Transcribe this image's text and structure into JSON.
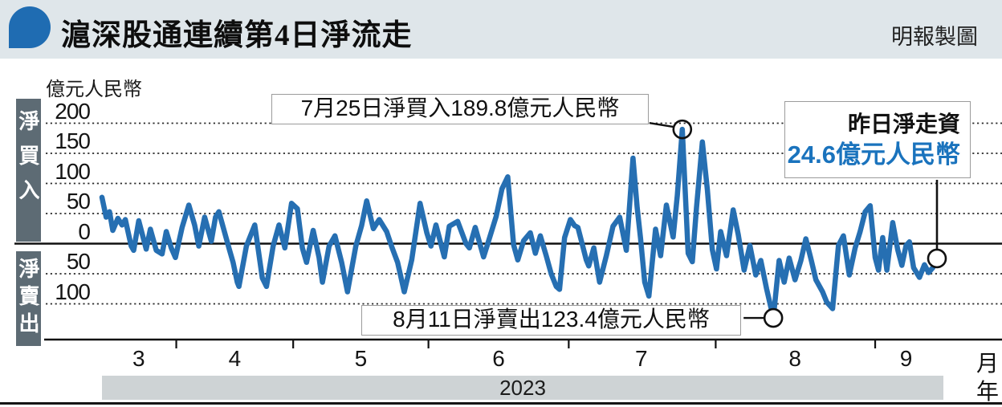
{
  "header": {
    "title": "滬深股通連續第4日淨流走",
    "credit": "明報製圖",
    "icon": "speech-bubble-icon",
    "bg_color": "#dfe6ea",
    "icon_color": "#1f6cb2"
  },
  "chart_data": {
    "type": "line",
    "unit_label": "億元人民幣",
    "line_color": "#266fb2",
    "grid_color": "#2a2a2a",
    "y_axis": {
      "positive_label": "淨買入",
      "negative_label": "淨賣出",
      "ticks": [
        {
          "value": 200,
          "label": "200"
        },
        {
          "value": 150,
          "label": "150"
        },
        {
          "value": 100,
          "label": "100"
        },
        {
          "value": 50,
          "label": "50"
        },
        {
          "value": 0,
          "label": "0"
        },
        {
          "value": -50,
          "label": "50"
        },
        {
          "value": -100,
          "label": "100"
        }
      ],
      "range": [
        -140,
        210
      ]
    },
    "x_axis": {
      "months": [
        {
          "label": "3",
          "t": 0.044
        },
        {
          "label": "4",
          "t": 0.159
        },
        {
          "label": "5",
          "t": 0.31
        },
        {
          "label": "6",
          "t": 0.475
        },
        {
          "label": "7",
          "t": 0.646
        },
        {
          "label": "8",
          "t": 0.83
        },
        {
          "label": "9",
          "t": 0.963
        }
      ],
      "tick_ts": [
        0.089,
        0.229,
        0.391,
        0.559,
        0.735,
        0.926
      ],
      "month_suffix": "月",
      "year": "2023",
      "year_suffix": "年"
    },
    "annotations": [
      {
        "text": "7月25日淨買入189.8億元人民幣",
        "t": 0.695,
        "value": 189.8
      },
      {
        "text": "8月11日淨賣出123.4億元人民幣",
        "t": 0.804,
        "value": -123.4
      },
      {
        "title": "昨日淨走資",
        "amount": "24.6億元人民幣",
        "amount_color": "#1a73bd",
        "t": 1.0,
        "value": -24.6
      }
    ],
    "points": [
      [
        0.0,
        77
      ],
      [
        0.005,
        44
      ],
      [
        0.009,
        53
      ],
      [
        0.013,
        22
      ],
      [
        0.019,
        42
      ],
      [
        0.024,
        31
      ],
      [
        0.028,
        40
      ],
      [
        0.035,
        -4
      ],
      [
        0.038,
        -11
      ],
      [
        0.044,
        38
      ],
      [
        0.053,
        -9
      ],
      [
        0.058,
        24
      ],
      [
        0.065,
        -11
      ],
      [
        0.072,
        -17
      ],
      [
        0.077,
        20
      ],
      [
        0.083,
        -7
      ],
      [
        0.088,
        -23
      ],
      [
        0.096,
        27
      ],
      [
        0.104,
        64
      ],
      [
        0.111,
        31
      ],
      [
        0.116,
        -4
      ],
      [
        0.123,
        44
      ],
      [
        0.131,
        4
      ],
      [
        0.136,
        44
      ],
      [
        0.14,
        53
      ],
      [
        0.152,
        -7
      ],
      [
        0.157,
        -31
      ],
      [
        0.162,
        -64
      ],
      [
        0.164,
        -71
      ],
      [
        0.173,
        -4
      ],
      [
        0.183,
        31
      ],
      [
        0.192,
        -57
      ],
      [
        0.197,
        -71
      ],
      [
        0.205,
        -4
      ],
      [
        0.212,
        31
      ],
      [
        0.219,
        -7
      ],
      [
        0.227,
        67
      ],
      [
        0.234,
        58
      ],
      [
        0.24,
        -7
      ],
      [
        0.245,
        -31
      ],
      [
        0.253,
        22
      ],
      [
        0.26,
        -23
      ],
      [
        0.264,
        -64
      ],
      [
        0.272,
        -4
      ],
      [
        0.279,
        13
      ],
      [
        0.287,
        -31
      ],
      [
        0.294,
        -80
      ],
      [
        0.304,
        -4
      ],
      [
        0.311,
        30
      ],
      [
        0.317,
        71
      ],
      [
        0.325,
        25
      ],
      [
        0.332,
        40
      ],
      [
        0.341,
        20
      ],
      [
        0.347,
        -5
      ],
      [
        0.354,
        -31
      ],
      [
        0.362,
        -80
      ],
      [
        0.371,
        -27
      ],
      [
        0.381,
        67
      ],
      [
        0.389,
        18
      ],
      [
        0.394,
        -4
      ],
      [
        0.4,
        31
      ],
      [
        0.41,
        -22
      ],
      [
        0.416,
        29
      ],
      [
        0.426,
        37
      ],
      [
        0.436,
        0
      ],
      [
        0.44,
        -7
      ],
      [
        0.447,
        27
      ],
      [
        0.457,
        -22
      ],
      [
        0.462,
        0
      ],
      [
        0.472,
        45
      ],
      [
        0.479,
        91
      ],
      [
        0.486,
        111
      ],
      [
        0.493,
        -2
      ],
      [
        0.498,
        -27
      ],
      [
        0.505,
        5
      ],
      [
        0.513,
        18
      ],
      [
        0.519,
        -16
      ],
      [
        0.525,
        13
      ],
      [
        0.532,
        -20
      ],
      [
        0.538,
        -50
      ],
      [
        0.544,
        -71
      ],
      [
        0.548,
        -76
      ],
      [
        0.554,
        10
      ],
      [
        0.561,
        40
      ],
      [
        0.566,
        30
      ],
      [
        0.57,
        27
      ],
      [
        0.576,
        -5
      ],
      [
        0.58,
        -27
      ],
      [
        0.583,
        -37
      ],
      [
        0.589,
        -7
      ],
      [
        0.596,
        -64
      ],
      [
        0.604,
        -20
      ],
      [
        0.612,
        29
      ],
      [
        0.62,
        44
      ],
      [
        0.628,
        -11
      ],
      [
        0.636,
        142
      ],
      [
        0.641,
        60
      ],
      [
        0.645,
        9
      ],
      [
        0.65,
        -64
      ],
      [
        0.655,
        -87
      ],
      [
        0.663,
        24
      ],
      [
        0.669,
        -20
      ],
      [
        0.676,
        64
      ],
      [
        0.684,
        11
      ],
      [
        0.689,
        80
      ],
      [
        0.695,
        189.8
      ],
      [
        0.702,
        -16
      ],
      [
        0.707,
        -30
      ],
      [
        0.712,
        60
      ],
      [
        0.719,
        169
      ],
      [
        0.725,
        90
      ],
      [
        0.731,
        -10
      ],
      [
        0.736,
        -42
      ],
      [
        0.741,
        20
      ],
      [
        0.748,
        -20
      ],
      [
        0.756,
        56
      ],
      [
        0.762,
        15
      ],
      [
        0.769,
        -44
      ],
      [
        0.776,
        -3
      ],
      [
        0.783,
        -52
      ],
      [
        0.789,
        -28
      ],
      [
        0.796,
        -75
      ],
      [
        0.804,
        -123.4
      ],
      [
        0.811,
        -28
      ],
      [
        0.817,
        -64
      ],
      [
        0.823,
        -24
      ],
      [
        0.83,
        -60
      ],
      [
        0.837,
        -28
      ],
      [
        0.843,
        8
      ],
      [
        0.849,
        -25
      ],
      [
        0.855,
        -60
      ],
      [
        0.863,
        -80
      ],
      [
        0.868,
        -97
      ],
      [
        0.875,
        -108
      ],
      [
        0.882,
        -3
      ],
      [
        0.888,
        13
      ],
      [
        0.895,
        -52
      ],
      [
        0.902,
        -7
      ],
      [
        0.908,
        20
      ],
      [
        0.914,
        53
      ],
      [
        0.92,
        63
      ],
      [
        0.926,
        -23
      ],
      [
        0.93,
        -44
      ],
      [
        0.935,
        10
      ],
      [
        0.94,
        -44
      ],
      [
        0.947,
        35
      ],
      [
        0.953,
        -10
      ],
      [
        0.958,
        -36
      ],
      [
        0.963,
        -3
      ],
      [
        0.967,
        3
      ],
      [
        0.972,
        -40
      ],
      [
        0.979,
        -56
      ],
      [
        0.985,
        -35
      ],
      [
        0.99,
        -48
      ],
      [
        0.995,
        -40
      ],
      [
        1.0,
        -24.6
      ]
    ]
  }
}
